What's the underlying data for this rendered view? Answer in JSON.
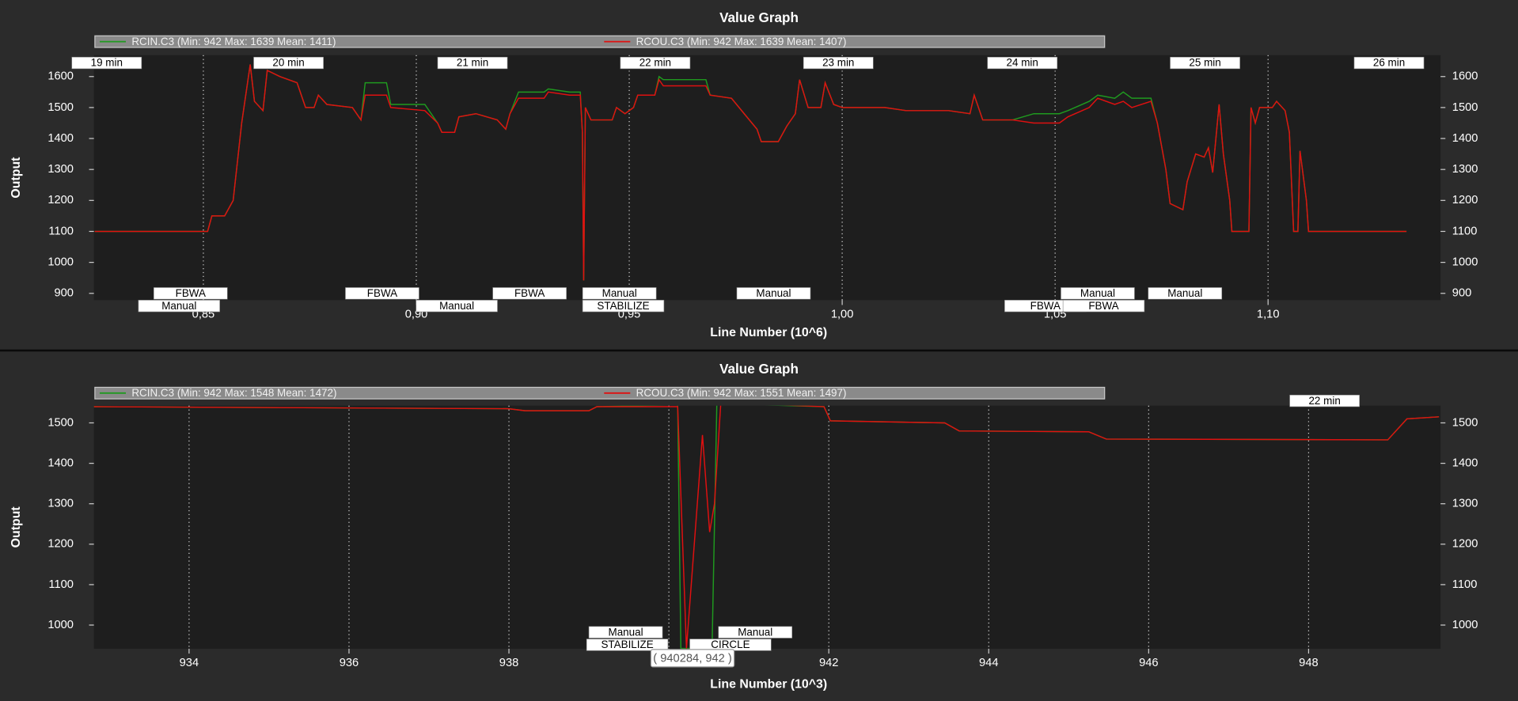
{
  "chart_data": [
    {
      "type": "line",
      "title": "Value Graph",
      "x_label": "Line Number (10^6)",
      "y_label": "Output",
      "xlim": [
        0.8243,
        1.1405
      ],
      "ylim": [
        878,
        1669
      ],
      "grid": true,
      "xticks": [
        {
          "value": 0.85,
          "label": "0,85"
        },
        {
          "value": 0.9,
          "label": "0,90"
        },
        {
          "value": 0.95,
          "label": "0,95"
        },
        {
          "value": 1.0,
          "label": "1,00"
        },
        {
          "value": 1.05,
          "label": "1,05"
        },
        {
          "value": 1.1,
          "label": "1,10"
        }
      ],
      "yticks": [
        900,
        1000,
        1100,
        1200,
        1300,
        1400,
        1500,
        1600
      ],
      "series": [
        {
          "name": "RCIN.C3 (Min: 942 Max: 1639 Mean: 1411)",
          "color": "#1f9a1f",
          "x": [
            0.8245,
            0.851,
            0.852,
            0.855,
            0.857,
            0.859,
            0.861,
            0.862,
            0.864,
            0.865,
            0.868,
            0.872,
            0.874,
            0.876,
            0.877,
            0.879,
            0.885,
            0.887,
            0.888,
            0.893,
            0.894,
            0.902,
            0.905,
            0.906,
            0.909,
            0.91,
            0.914,
            0.919,
            0.921,
            0.922,
            0.924,
            0.93,
            0.931,
            0.936,
            0.9385,
            0.939,
            0.9393,
            0.9397,
            0.941,
            0.946,
            0.947,
            0.949,
            0.951,
            0.952,
            0.956,
            0.957,
            0.958,
            0.968,
            0.969,
            0.974,
            0.977,
            0.98,
            0.981,
            0.985,
            0.987,
            0.989,
            0.99,
            0.992,
            0.995,
            0.996,
            0.998,
            1.0,
            1.01,
            1.015,
            1.025,
            1.03,
            1.031,
            1.033,
            1.04,
            1.045,
            1.051,
            1.053,
            1.058,
            1.06,
            1.064,
            1.066,
            1.068,
            1.0725,
            1.074,
            1.076,
            1.077,
            1.08,
            1.081,
            1.083,
            1.085,
            1.086,
            1.087,
            1.0885,
            1.0895,
            1.091,
            1.0915,
            1.0955,
            1.096,
            1.097,
            1.098,
            1.101,
            1.102,
            1.104,
            1.105,
            1.106,
            1.107,
            1.1075,
            1.109,
            1.1095,
            1.1325
          ],
          "values": [
            1100,
            1100,
            1150,
            1150,
            1200,
            1450,
            1639,
            1520,
            1490,
            1620,
            1600,
            1580,
            1500,
            1500,
            1540,
            1510,
            1500,
            1460,
            1580,
            1580,
            1510,
            1510,
            1450,
            1420,
            1420,
            1470,
            1480,
            1460,
            1430,
            1480,
            1550,
            1550,
            1560,
            1550,
            1550,
            1420,
            942,
            1500,
            1460,
            1460,
            1500,
            1480,
            1500,
            1540,
            1540,
            1600,
            1590,
            1590,
            1540,
            1530,
            1480,
            1430,
            1390,
            1390,
            1440,
            1480,
            1590,
            1500,
            1500,
            1580,
            1510,
            1500,
            1500,
            1490,
            1490,
            1480,
            1540,
            1460,
            1460,
            1480,
            1480,
            1490,
            1520,
            1540,
            1530,
            1550,
            1530,
            1530,
            1450,
            1300,
            1190,
            1170,
            1260,
            1350,
            1340,
            1370,
            1290,
            1510,
            1350,
            1200,
            1100,
            1100,
            1500,
            1450,
            1500,
            1500,
            1520,
            1490,
            1420,
            1100,
            1100,
            1360,
            1200,
            1100,
            1100
          ]
        },
        {
          "name": "RCOU.C3 (Min: 942 Max: 1639 Mean: 1407)",
          "color": "#e01010",
          "x": [
            0.8245,
            0.851,
            0.852,
            0.855,
            0.857,
            0.859,
            0.861,
            0.862,
            0.864,
            0.865,
            0.868,
            0.872,
            0.874,
            0.876,
            0.877,
            0.879,
            0.885,
            0.887,
            0.888,
            0.893,
            0.894,
            0.902,
            0.905,
            0.906,
            0.909,
            0.91,
            0.914,
            0.919,
            0.921,
            0.922,
            0.924,
            0.93,
            0.931,
            0.936,
            0.9385,
            0.939,
            0.9393,
            0.9397,
            0.941,
            0.946,
            0.947,
            0.949,
            0.951,
            0.952,
            0.956,
            0.957,
            0.958,
            0.968,
            0.969,
            0.974,
            0.977,
            0.98,
            0.981,
            0.985,
            0.987,
            0.989,
            0.99,
            0.992,
            0.995,
            0.996,
            0.998,
            1.0,
            1.01,
            1.015,
            1.025,
            1.03,
            1.031,
            1.033,
            1.04,
            1.045,
            1.051,
            1.053,
            1.058,
            1.06,
            1.064,
            1.066,
            1.068,
            1.0725,
            1.074,
            1.076,
            1.077,
            1.08,
            1.081,
            1.083,
            1.085,
            1.086,
            1.087,
            1.0885,
            1.0895,
            1.091,
            1.0915,
            1.0955,
            1.096,
            1.097,
            1.098,
            1.101,
            1.102,
            1.104,
            1.105,
            1.106,
            1.107,
            1.1075,
            1.109,
            1.1095,
            1.1325
          ],
          "values": [
            1100,
            1100,
            1150,
            1150,
            1200,
            1450,
            1639,
            1520,
            1490,
            1620,
            1600,
            1580,
            1500,
            1500,
            1540,
            1510,
            1500,
            1460,
            1540,
            1540,
            1500,
            1490,
            1450,
            1420,
            1420,
            1470,
            1480,
            1460,
            1430,
            1480,
            1530,
            1530,
            1550,
            1540,
            1540,
            1420,
            942,
            1500,
            1460,
            1460,
            1500,
            1480,
            1500,
            1540,
            1540,
            1590,
            1570,
            1570,
            1540,
            1530,
            1480,
            1430,
            1390,
            1390,
            1440,
            1480,
            1590,
            1500,
            1500,
            1580,
            1510,
            1500,
            1500,
            1490,
            1490,
            1480,
            1540,
            1460,
            1460,
            1450,
            1450,
            1470,
            1500,
            1530,
            1510,
            1520,
            1500,
            1520,
            1450,
            1300,
            1190,
            1170,
            1260,
            1350,
            1340,
            1370,
            1290,
            1510,
            1350,
            1200,
            1100,
            1100,
            1500,
            1450,
            1500,
            1500,
            1520,
            1490,
            1420,
            1100,
            1100,
            1360,
            1200,
            1100,
            1100
          ]
        }
      ],
      "time_labels": [
        {
          "text": "19 min",
          "x": 0.8273
        },
        {
          "text": "20 min",
          "x": 0.87
        },
        {
          "text": "21 min",
          "x": 0.9132
        },
        {
          "text": "22 min",
          "x": 0.9561
        },
        {
          "text": "23 min",
          "x": 0.9991
        },
        {
          "text": "24 min",
          "x": 1.0423
        },
        {
          "text": "25 min",
          "x": 1.0852
        },
        {
          "text": "26 min",
          "x": 1.1284
        }
      ],
      "mode_labels_upper": [
        {
          "text": "FBWA",
          "x": 0.847
        },
        {
          "text": "FBWA",
          "x": 0.892
        },
        {
          "text": "FBWA",
          "x": 0.9266
        },
        {
          "text": "Manual",
          "x": 0.9477
        },
        {
          "text": "Manual",
          "x": 0.9839
        },
        {
          "text": "Manual",
          "x": 1.06
        },
        {
          "text": "Manual",
          "x": 1.0805
        }
      ],
      "mode_labels_lower": [
        {
          "text": "Manual",
          "x": 0.8443
        },
        {
          "text": "Manual",
          "x": 0.9095
        },
        {
          "text": "STABILIZE",
          "x": 0.9486
        },
        {
          "text": "FBWA",
          "x": 1.0477
        },
        {
          "text": "FBWA",
          "x": 1.0614
        }
      ]
    },
    {
      "type": "line",
      "title": "Value Graph",
      "x_label": "Line Number (10^3)",
      "y_label": "Output",
      "xlim": [
        932.81,
        949.65
      ],
      "ylim": [
        941.5,
        1542.5
      ],
      "grid": true,
      "xticks": [
        934,
        936,
        938,
        940,
        942,
        944,
        946,
        948
      ],
      "yticks": [
        1000,
        1100,
        1200,
        1300,
        1400,
        1500
      ],
      "series": [
        {
          "name": "RCIN.C3 (Min: 942 Max: 1548 Mean: 1472)",
          "color": "#1f9a1f",
          "x": [
            932.81,
            938.0,
            938.2,
            939.0,
            939.1,
            940.11,
            940.15,
            940.54,
            940.6,
            941.94,
            942.02,
            943.45,
            943.63,
            945.25,
            945.47,
            948.99,
            949.23,
            949.63
          ],
          "values": [
            1540,
            1535,
            1530,
            1530,
            1540,
            1545,
            942,
            942,
            1548,
            1540,
            1505,
            1500,
            1480,
            1478,
            1460,
            1458,
            1510,
            1515
          ]
        },
        {
          "name": "RCOU.C3 (Min: 942 Max: 1551 Mean: 1497)",
          "color": "#e01010",
          "x": [
            932.81,
            938.0,
            938.2,
            939.0,
            939.1,
            940.11,
            940.22,
            940.42,
            940.51,
            940.57,
            940.65,
            941.94,
            942.02,
            943.45,
            943.63,
            945.25,
            945.47,
            948.99,
            949.23,
            949.63
          ],
          "values": [
            1540,
            1535,
            1530,
            1530,
            1540,
            1540,
            942,
            1470,
            1230,
            1300,
            1551,
            1540,
            1505,
            1500,
            1480,
            1478,
            1460,
            1458,
            1510,
            1515
          ]
        }
      ],
      "time_labels": [
        {
          "text": "22 min",
          "x": 948.2
        }
      ],
      "mode_labels_upper": [
        {
          "text": "Manual",
          "x": 939.46
        },
        {
          "text": "Manual",
          "x": 941.08
        }
      ],
      "mode_labels_lower": [
        {
          "text": "STABILIZE",
          "x": 939.48
        },
        {
          "text": "CIRCLE",
          "x": 940.77
        }
      ],
      "tooltip": {
        "text": "( 940284, 942 )",
        "x": 940.284,
        "y": 942
      }
    }
  ]
}
